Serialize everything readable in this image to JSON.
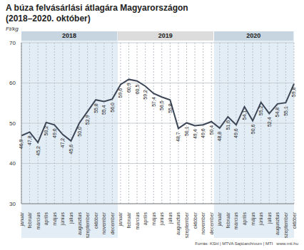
{
  "chart_data": {
    "type": "line",
    "title": "A búza felvásárlási átlagára Magyarországon\n(2018–2020. október)",
    "y_label": "Ft/kg",
    "source": "Forrás: KSH | MTVA Sajtóarchívum | MTI",
    "url": "www.mti.hu",
    "years": [
      "2018",
      "2019",
      "2020"
    ],
    "categories": [
      "január",
      "február",
      "március",
      "április",
      "május",
      "június",
      "július",
      "augusztus",
      "szeptember",
      "október",
      "november",
      "december",
      "január",
      "február",
      "március",
      "április",
      "május",
      "június",
      "július",
      "augusztus",
      "szeptember",
      "október",
      "november",
      "december",
      "január",
      "február",
      "március",
      "április",
      "május",
      "június",
      "július",
      "augusztus",
      "szeptember",
      "október"
    ],
    "values": [
      46.9,
      47.8,
      45.2,
      50.2,
      49.6,
      47.2,
      45.6,
      50.0,
      52.9,
      55.8,
      55.4,
      56.0,
      59.6,
      60.9,
      60.5,
      59.2,
      57.4,
      56.5,
      55.8,
      48.7,
      50.1,
      49.4,
      49.6,
      50.4,
      48.8,
      51.6,
      49.6,
      54.1,
      50.6,
      55.2,
      52.4,
      54.8,
      55.1,
      59.8
    ],
    "value_labels": [
      "46,9",
      "47,8",
      "45,2",
      "50,2",
      "49,6",
      "47,2",
      "45,6",
      "50,0",
      "52,9",
      "55,8",
      "55,4",
      "56,0",
      "59,6",
      "60,9",
      "60,5",
      "59,2",
      "57,4",
      "56,5",
      "55,8",
      "48,7",
      "50,1",
      "49,4",
      "49,6",
      "50,4",
      "48,8",
      "51,6",
      "49,6",
      "54,1",
      "50,6",
      "55,2",
      "52,4",
      "54,8",
      "55,1",
      "59,8"
    ],
    "color": "#3d4656",
    "ylim": [
      30,
      70
    ],
    "yticks": [
      30,
      40,
      50,
      60,
      70
    ],
    "grid": true,
    "data_labels": true
  }
}
